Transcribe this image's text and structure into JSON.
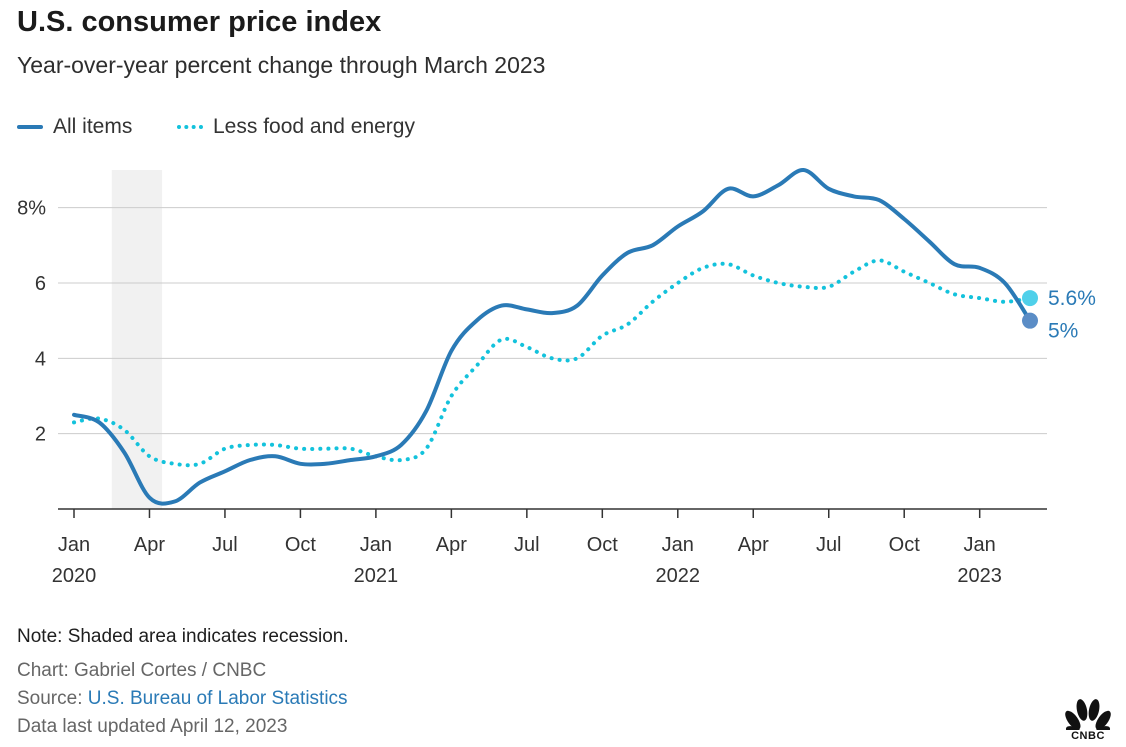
{
  "header": {
    "title": "U.S. consumer price index",
    "subtitle": "Year-over-year percent change through March 2023"
  },
  "legend": {
    "all_items": "All items",
    "core": "Less food and energy"
  },
  "footer": {
    "note": "Note: Shaded area indicates recession.",
    "credit": "Chart: Gabriel Cortes / CNBC",
    "source_prefix": "Source: ",
    "source_link": "U.S. Bureau of Labor Statistics",
    "updated": "Data last updated April 12, 2023"
  },
  "brand": {
    "name": "CNBC"
  },
  "colors": {
    "all_items": "#2a7ab6",
    "core": "#13c2dc",
    "recession": "#f1f1f1",
    "grid": "#cccccc",
    "axis": "#333333"
  },
  "chart_data": {
    "type": "line",
    "title": "U.S. consumer price index",
    "subtitle": "Year-over-year percent change through March 2023",
    "x": [
      "2020-01",
      "2020-02",
      "2020-03",
      "2020-04",
      "2020-05",
      "2020-06",
      "2020-07",
      "2020-08",
      "2020-09",
      "2020-10",
      "2020-11",
      "2020-12",
      "2021-01",
      "2021-02",
      "2021-03",
      "2021-04",
      "2021-05",
      "2021-06",
      "2021-07",
      "2021-08",
      "2021-09",
      "2021-10",
      "2021-11",
      "2021-12",
      "2022-01",
      "2022-02",
      "2022-03",
      "2022-04",
      "2022-05",
      "2022-06",
      "2022-07",
      "2022-08",
      "2022-09",
      "2022-10",
      "2022-11",
      "2022-12",
      "2023-01",
      "2023-02",
      "2023-03"
    ],
    "series": [
      {
        "name": "All items",
        "style": "solid",
        "values": [
          2.5,
          2.3,
          1.5,
          0.3,
          0.2,
          0.7,
          1.0,
          1.3,
          1.4,
          1.2,
          1.2,
          1.3,
          1.4,
          1.7,
          2.6,
          4.2,
          5.0,
          5.4,
          5.3,
          5.2,
          5.4,
          6.2,
          6.8,
          7.0,
          7.5,
          7.9,
          8.5,
          8.3,
          8.6,
          9.0,
          8.5,
          8.3,
          8.2,
          7.7,
          7.1,
          6.5,
          6.4,
          6.0,
          5.0
        ]
      },
      {
        "name": "Less food and energy",
        "style": "dotted",
        "values": [
          2.3,
          2.4,
          2.1,
          1.4,
          1.2,
          1.2,
          1.6,
          1.7,
          1.7,
          1.6,
          1.6,
          1.6,
          1.4,
          1.3,
          1.6,
          3.0,
          3.8,
          4.5,
          4.3,
          4.0,
          4.0,
          4.6,
          4.9,
          5.5,
          6.0,
          6.4,
          6.5,
          6.2,
          6.0,
          5.9,
          5.9,
          6.3,
          6.6,
          6.3,
          6.0,
          5.7,
          5.6,
          5.5,
          5.6
        ]
      }
    ],
    "end_labels": [
      {
        "series": "Less food and energy",
        "label": "5.6%"
      },
      {
        "series": "All items",
        "label": "5%"
      }
    ],
    "ylim": [
      0,
      9
    ],
    "yticks": [
      {
        "value": 2,
        "label": "2"
      },
      {
        "value": 4,
        "label": "4"
      },
      {
        "value": 6,
        "label": "6"
      },
      {
        "value": 8,
        "label": "8%"
      }
    ],
    "xticks": [
      {
        "index": 0,
        "label": "Jan",
        "year": "2020"
      },
      {
        "index": 3,
        "label": "Apr",
        "year": ""
      },
      {
        "index": 6,
        "label": "Jul",
        "year": ""
      },
      {
        "index": 9,
        "label": "Oct",
        "year": ""
      },
      {
        "index": 12,
        "label": "Jan",
        "year": "2021"
      },
      {
        "index": 15,
        "label": "Apr",
        "year": ""
      },
      {
        "index": 18,
        "label": "Jul",
        "year": ""
      },
      {
        "index": 21,
        "label": "Oct",
        "year": ""
      },
      {
        "index": 24,
        "label": "Jan",
        "year": "2022"
      },
      {
        "index": 27,
        "label": "Apr",
        "year": ""
      },
      {
        "index": 30,
        "label": "Jul",
        "year": ""
      },
      {
        "index": 33,
        "label": "Oct",
        "year": ""
      },
      {
        "index": 36,
        "label": "Jan",
        "year": "2023"
      }
    ],
    "recession": {
      "from": "2020-03",
      "to": "2020-04"
    },
    "grid": true,
    "legend_position": "top-left"
  }
}
